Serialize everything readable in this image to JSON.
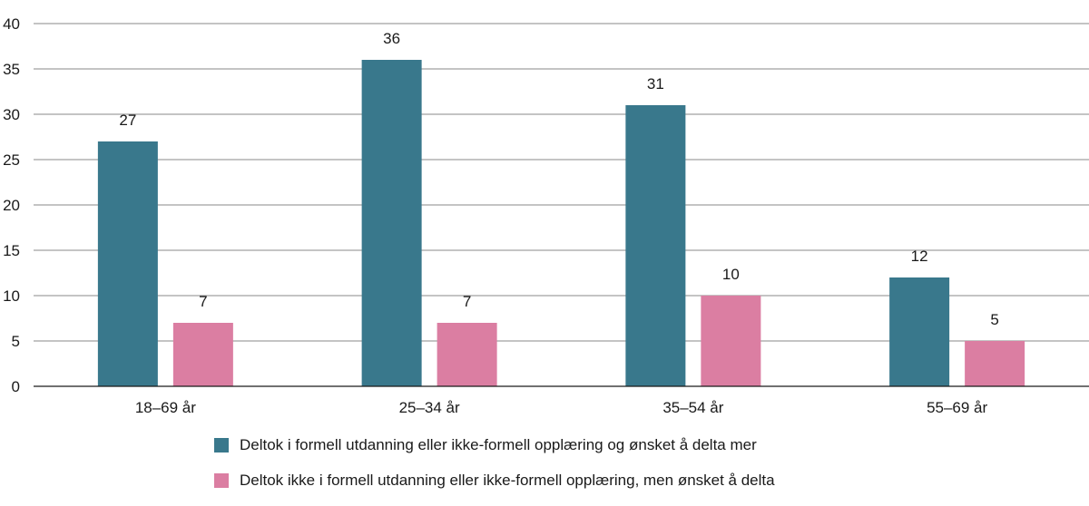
{
  "chart_data": {
    "type": "bar",
    "categories": [
      "18–69 år",
      "25–34 år",
      "35–54 år",
      "55–69 år"
    ],
    "series": [
      {
        "name": "Deltok i formell utdanning eller ikke-formell opplæring og ønsket å delta mer",
        "values": [
          27,
          36,
          31,
          12
        ],
        "color": "#39788c"
      },
      {
        "name": "Deltok ikke i formell utdanning eller ikke-formell opplæring, men ønsket å delta",
        "values": [
          7,
          7,
          10,
          5
        ],
        "color": "#db7ea2"
      }
    ],
    "ylim": [
      0,
      40
    ],
    "yticks": [
      0,
      5,
      10,
      15,
      20,
      25,
      30,
      35,
      40
    ],
    "ytick_labels": [
      "0",
      "5",
      "10",
      "15",
      "20",
      "25",
      "30",
      "35",
      "40"
    ],
    "data_labels": true,
    "grid": true,
    "legend_position": "bottom",
    "title": "",
    "xlabel": "",
    "ylabel": ""
  }
}
